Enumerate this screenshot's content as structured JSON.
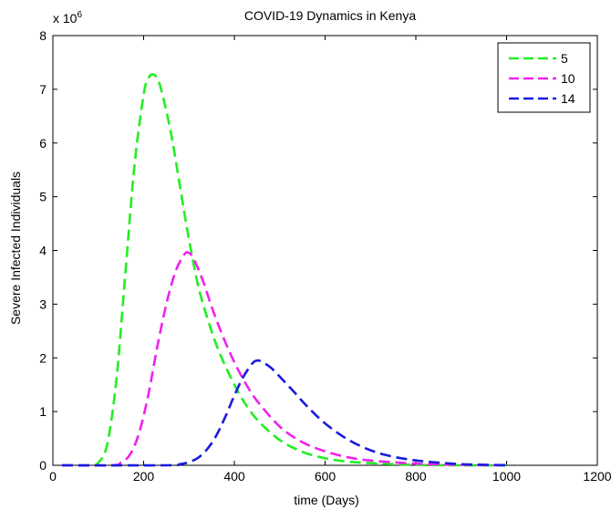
{
  "chart_data": {
    "type": "line",
    "title": "COVID-19 Dynamics in Kenya",
    "xlabel": "time (Days)",
    "ylabel": "Severe Infected Individuals",
    "y_multiplier_label": "x 10",
    "y_multiplier_exponent": "6",
    "xlim": [
      0,
      1200
    ],
    "ylim": [
      0,
      8
    ],
    "xticks": [
      "0",
      "200",
      "400",
      "600",
      "800",
      "1000",
      "1200"
    ],
    "yticks": [
      "0",
      "1",
      "2",
      "3",
      "4",
      "5",
      "6",
      "7",
      "8"
    ],
    "grid": false,
    "legend_position": "top-right",
    "series": [
      {
        "name": "5",
        "color": "#22ee22",
        "x": [
          20,
          80,
          100,
          120,
          140,
          160,
          180,
          200,
          210,
          220,
          230,
          240,
          260,
          280,
          300,
          320,
          340,
          360,
          380,
          400,
          420,
          450,
          500,
          550,
          600,
          650,
          700,
          800,
          900,
          1000
        ],
        "y": [
          0,
          0,
          0.05,
          0.4,
          1.6,
          3.6,
          5.6,
          6.9,
          7.2,
          7.28,
          7.2,
          6.95,
          6.2,
          5.2,
          4.2,
          3.35,
          2.75,
          2.25,
          1.85,
          1.5,
          1.2,
          0.85,
          0.47,
          0.25,
          0.13,
          0.07,
          0.04,
          0.01,
          0,
          0
        ]
      },
      {
        "name": "10",
        "color": "#ee22ee",
        "x": [
          20,
          130,
          150,
          170,
          190,
          210,
          230,
          250,
          270,
          290,
          300,
          310,
          330,
          350,
          370,
          390,
          410,
          430,
          450,
          500,
          550,
          600,
          650,
          700,
          800,
          900,
          1000
        ],
        "y": [
          0,
          0,
          0.05,
          0.2,
          0.6,
          1.3,
          2.2,
          3.0,
          3.6,
          3.93,
          3.95,
          3.85,
          3.45,
          2.95,
          2.5,
          2.1,
          1.75,
          1.45,
          1.2,
          0.72,
          0.43,
          0.26,
          0.15,
          0.09,
          0.03,
          0.01,
          0
        ]
      },
      {
        "name": "14",
        "color": "#1a1add",
        "x": [
          20,
          250,
          280,
          300,
          320,
          340,
          360,
          380,
          400,
          420,
          440,
          450,
          460,
          480,
          500,
          530,
          560,
          600,
          650,
          700,
          750,
          800,
          850,
          900,
          950,
          1000
        ],
        "y": [
          0,
          0,
          0.02,
          0.06,
          0.14,
          0.3,
          0.55,
          0.9,
          1.3,
          1.65,
          1.9,
          1.95,
          1.93,
          1.82,
          1.65,
          1.38,
          1.1,
          0.78,
          0.48,
          0.28,
          0.16,
          0.09,
          0.05,
          0.02,
          0.01,
          0
        ]
      }
    ]
  }
}
